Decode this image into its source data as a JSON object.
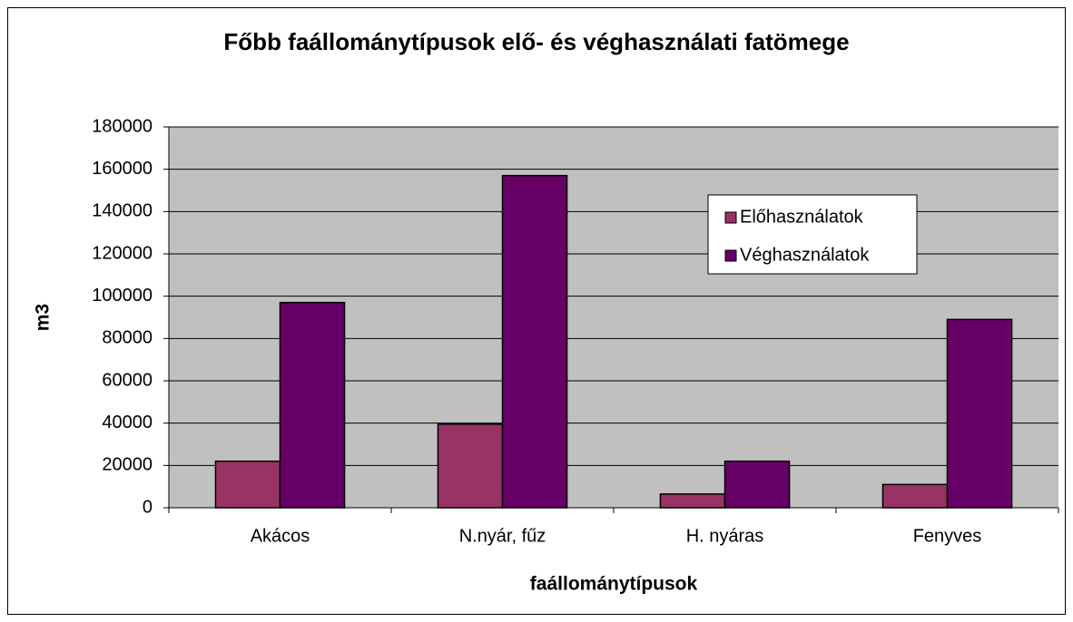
{
  "chart_data": {
    "type": "bar",
    "title": "Főbb faállománytípusok elő- és véghasználati fatömege",
    "x_label": "faállománytípusok",
    "y_label": "m3",
    "categories": [
      "Akácos",
      "N.nyár, fűz",
      "H. nyáras",
      "Fenyves"
    ],
    "series": [
      {
        "name": "Előhasználatok",
        "color": "#993366",
        "values": [
          22000,
          39500,
          6500,
          11000
        ]
      },
      {
        "name": "Véghasználatok",
        "color": "#660066",
        "values": [
          97000,
          157000,
          22000,
          89000
        ]
      }
    ],
    "ylim": [
      0,
      180000
    ],
    "yticks": [
      0,
      20000,
      40000,
      60000,
      80000,
      100000,
      120000,
      140000,
      160000,
      180000
    ],
    "grid": true
  }
}
